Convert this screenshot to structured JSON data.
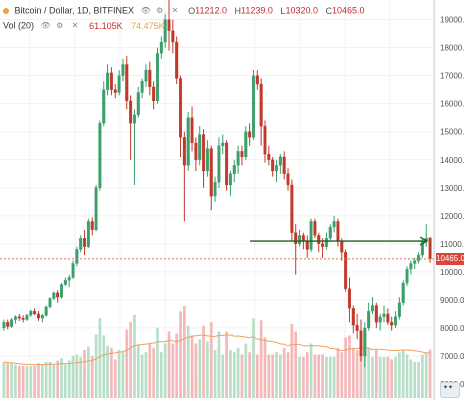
{
  "header": {
    "symbol_title": "Bitcoin / Dollar, 1D, BITFINEX",
    "open_label": "O",
    "open_value": "11212.0",
    "high_label": "H",
    "high_value": "11239.0",
    "low_label": "L",
    "low_value": "10320.0",
    "close_label": "C",
    "close_value": "10465.0",
    "volume_label": "Vol (20)",
    "volume_value": "61.105K",
    "volume_ma_value": "74.475K",
    "eye_icon": "eye-icon",
    "settings_icon": "gear-icon",
    "close_icon": "close-icon"
  },
  "price_tag": "10465.0",
  "watermark": "tradingview-flag-badge",
  "colors": {
    "up": "#3a9f6a",
    "down": "#c0392b",
    "vol_up": "#b7dfc7",
    "vol_down": "#f3b9b9",
    "vol_ma": "#f0a060",
    "hline": "#1b5e20",
    "last_price_line": "#e06a5a",
    "price_tag_bg": "#d8453b"
  },
  "chart_data": {
    "type": "candlestick",
    "y_ticks": [
      "19000.0",
      "18000.0",
      "17000.0",
      "16000.0",
      "15000.0",
      "14000.0",
      "13000.0",
      "12000.0",
      "11000.0",
      "10000.0",
      "9000.0",
      "8000.0",
      "7000.0",
      "6000.0"
    ],
    "ylim": [
      5500,
      19700
    ],
    "horizontal_level": 11100,
    "last_price": 10465,
    "ohlc": [
      [
        8000,
        8300,
        7900,
        8200
      ],
      [
        8200,
        8300,
        7950,
        8050
      ],
      [
        8050,
        8350,
        8000,
        8300
      ],
      [
        8300,
        8450,
        8150,
        8400
      ],
      [
        8400,
        8500,
        8250,
        8350
      ],
      [
        8350,
        8450,
        8200,
        8300
      ],
      [
        8300,
        8500,
        8250,
        8450
      ],
      [
        8450,
        8650,
        8400,
        8600
      ],
      [
        8600,
        8700,
        8450,
        8500
      ],
      [
        8500,
        8600,
        8250,
        8350
      ],
      [
        8350,
        8500,
        8200,
        8450
      ],
      [
        8450,
        8800,
        8400,
        8750
      ],
      [
        8750,
        9100,
        8700,
        9050
      ],
      [
        9050,
        9300,
        9000,
        9250
      ],
      [
        9250,
        9350,
        8900,
        9100
      ],
      [
        9100,
        9600,
        9050,
        9550
      ],
      [
        9550,
        9800,
        9500,
        9700
      ],
      [
        9700,
        9900,
        9450,
        9800
      ],
      [
        9800,
        10400,
        9750,
        10300
      ],
      [
        10300,
        10900,
        10200,
        10800
      ],
      [
        10800,
        11300,
        10700,
        11200
      ],
      [
        11200,
        11500,
        10600,
        10900
      ],
      [
        10900,
        11900,
        10850,
        11800
      ],
      [
        11800,
        11950,
        11300,
        11500
      ],
      [
        11500,
        13100,
        11450,
        13000
      ],
      [
        13000,
        15400,
        12900,
        15300
      ],
      [
        15300,
        16800,
        15200,
        16500
      ],
      [
        16500,
        17400,
        16300,
        17100
      ],
      [
        17100,
        17300,
        16300,
        16500
      ],
      [
        16500,
        16700,
        16200,
        16400
      ],
      [
        16400,
        17200,
        16300,
        17000
      ],
      [
        17000,
        17600,
        16800,
        17400
      ],
      [
        17400,
        17700,
        15800,
        16100
      ],
      [
        16100,
        16300,
        14000,
        15300
      ],
      [
        15300,
        15800,
        13100,
        15600
      ],
      [
        15600,
        16600,
        15500,
        16400
      ],
      [
        16400,
        16900,
        16200,
        16800
      ],
      [
        16800,
        17400,
        16600,
        17200
      ],
      [
        17200,
        17500,
        16300,
        16600
      ],
      [
        16600,
        16800,
        15800,
        16100
      ],
      [
        16100,
        18000,
        16000,
        17800
      ],
      [
        17800,
        18400,
        17600,
        18200
      ],
      [
        18200,
        19200,
        18000,
        19000
      ],
      [
        19000,
        19700,
        17900,
        18600
      ],
      [
        18600,
        19000,
        17800,
        18200
      ],
      [
        18200,
        18400,
        16700,
        16900
      ],
      [
        16900,
        17000,
        14100,
        14800
      ],
      [
        14800,
        15000,
        11800,
        13800
      ],
      [
        13800,
        15700,
        13600,
        15500
      ],
      [
        15500,
        15900,
        14300,
        14600
      ],
      [
        14600,
        14800,
        13600,
        14000
      ],
      [
        14000,
        15200,
        13800,
        14900
      ],
      [
        14900,
        15100,
        13000,
        13600
      ],
      [
        13600,
        14700,
        13400,
        14400
      ],
      [
        14400,
        14500,
        12200,
        12700
      ],
      [
        12700,
        13400,
        12500,
        13200
      ],
      [
        13200,
        14800,
        13000,
        14500
      ],
      [
        14500,
        14900,
        14200,
        14600
      ],
      [
        14600,
        14700,
        12900,
        13100
      ],
      [
        13100,
        13600,
        12700,
        13500
      ],
      [
        13500,
        14000,
        13200,
        13800
      ],
      [
        13800,
        14500,
        13500,
        14300
      ],
      [
        14300,
        14500,
        13800,
        14100
      ],
      [
        14100,
        15200,
        14000,
        15000
      ],
      [
        15000,
        15300,
        14500,
        14800
      ],
      [
        14800,
        17200,
        14700,
        17000
      ],
      [
        17000,
        17200,
        16500,
        16700
      ],
      [
        16700,
        16900,
        14500,
        15200
      ],
      [
        15200,
        15400,
        13900,
        14200
      ],
      [
        14200,
        14500,
        13800,
        14000
      ],
      [
        14000,
        14100,
        13400,
        13600
      ],
      [
        13600,
        14000,
        13200,
        13800
      ],
      [
        13800,
        14200,
        13500,
        14100
      ],
      [
        14100,
        14300,
        13300,
        13500
      ],
      [
        13500,
        13700,
        12900,
        13100
      ],
      [
        13100,
        13300,
        11100,
        11400
      ],
      [
        11400,
        11700,
        9900,
        11000
      ],
      [
        11000,
        11500,
        10900,
        11300
      ],
      [
        11300,
        11400,
        10800,
        11100
      ],
      [
        11100,
        11300,
        10500,
        10800
      ],
      [
        10800,
        11900,
        10700,
        11800
      ],
      [
        11800,
        11900,
        11200,
        11300
      ],
      [
        11300,
        11400,
        10700,
        11000
      ],
      [
        11000,
        11200,
        10500,
        10900
      ],
      [
        10900,
        11400,
        10800,
        11200
      ],
      [
        11200,
        11700,
        11100,
        11600
      ],
      [
        11600,
        12000,
        11400,
        11800
      ],
      [
        11800,
        11900,
        10900,
        11100
      ],
      [
        11100,
        11200,
        10400,
        10700
      ],
      [
        10700,
        10800,
        9300,
        9400
      ],
      [
        9400,
        9800,
        8200,
        8700
      ],
      [
        8700,
        8800,
        7800,
        8100
      ],
      [
        8100,
        8500,
        7600,
        7900
      ],
      [
        7900,
        8300,
        6800,
        7000
      ],
      [
        7000,
        8200,
        6600,
        8000
      ],
      [
        8000,
        8900,
        7900,
        8600
      ],
      [
        8600,
        9100,
        8500,
        8800
      ],
      [
        8800,
        8900,
        8000,
        8200
      ],
      [
        8200,
        8500,
        7900,
        8400
      ],
      [
        8400,
        8800,
        8200,
        8500
      ],
      [
        8500,
        8700,
        8100,
        8200
      ],
      [
        8200,
        8400,
        7900,
        8100
      ],
      [
        8100,
        8600,
        8000,
        8400
      ],
      [
        8400,
        9100,
        8300,
        8900
      ],
      [
        8900,
        9700,
        8800,
        9600
      ],
      [
        9600,
        10200,
        9500,
        10100
      ],
      [
        10100,
        10400,
        9900,
        10300
      ],
      [
        10300,
        10500,
        10100,
        10400
      ],
      [
        10400,
        10700,
        10300,
        10600
      ],
      [
        10600,
        11200,
        10500,
        11100
      ],
      [
        11100,
        11700,
        10900,
        11200
      ],
      [
        11212,
        11239,
        10320,
        10465
      ]
    ]
  }
}
